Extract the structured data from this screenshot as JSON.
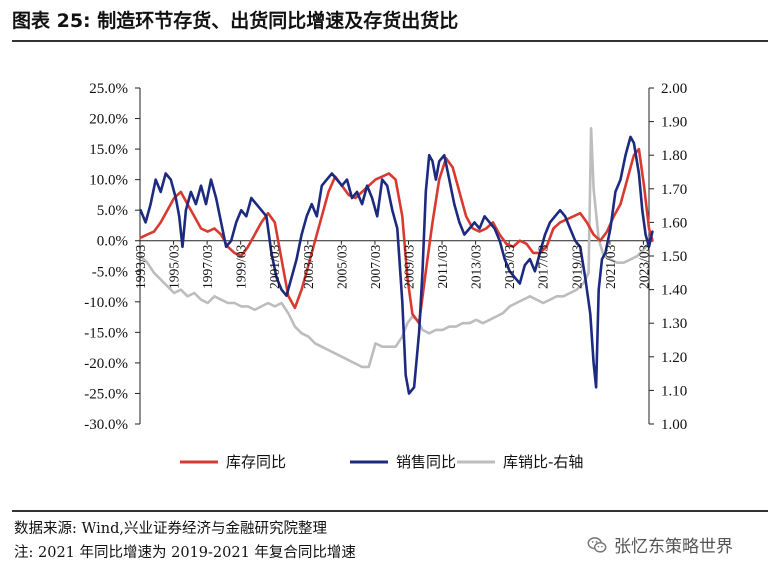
{
  "title": "图表 25:  制造环节存货、出货同比增速及存货出货比",
  "source": "数据来源:  Wind,兴业证券经济与金融研究院整理",
  "note": "注:  2021 年同比增速为 2019-2021 年复合同比增速",
  "watermark": "张忆东策略世界",
  "watermark_icon": "wechat-icon",
  "chart_data": {
    "type": "line",
    "title": "",
    "xlabel": "",
    "ylabel": "",
    "ylabel_right": "",
    "x_range": [
      "1993/03",
      "2023/07"
    ],
    "ylim": [
      -30,
      25
    ],
    "ylim_right": [
      1.0,
      2.0
    ],
    "yticks": [
      "25.0%",
      "20.0%",
      "15.0%",
      "10.0%",
      "5.0%",
      "0.0%",
      "-5.0%",
      "-10.0%",
      "-15.0%",
      "-20.0%",
      "-25.0%",
      "-30.0%"
    ],
    "yticks_right": [
      "2.00",
      "1.90",
      "1.80",
      "1.70",
      "1.60",
      "1.50",
      "1.40",
      "1.30",
      "1.20",
      "1.10",
      "1.00"
    ],
    "xticks": [
      "1993/03",
      "1995/03",
      "1997/03",
      "1999/03",
      "2001/03",
      "2003/03",
      "2005/03",
      "2007/03",
      "2009/03",
      "2011/03",
      "2013/03",
      "2015/03",
      "2017/03",
      "2019/03",
      "2021/03",
      "2023/03"
    ],
    "legend_position": "bottom",
    "grid": false,
    "series": [
      {
        "name": "库存同比",
        "axis": "left",
        "color": "#d93a30",
        "points": [
          [
            1993.2,
            0.5
          ],
          [
            1993.6,
            1
          ],
          [
            1994.0,
            1.5
          ],
          [
            1994.4,
            3
          ],
          [
            1994.8,
            5
          ],
          [
            1995.2,
            7
          ],
          [
            1995.6,
            8
          ],
          [
            1996.0,
            6
          ],
          [
            1996.4,
            4
          ],
          [
            1996.8,
            2
          ],
          [
            1997.2,
            1.5
          ],
          [
            1997.6,
            2
          ],
          [
            1998.0,
            1
          ],
          [
            1998.4,
            -1
          ],
          [
            1998.8,
            -2
          ],
          [
            1999.2,
            -2.5
          ],
          [
            1999.6,
            -1
          ],
          [
            2000.0,
            1
          ],
          [
            2000.4,
            3
          ],
          [
            2000.8,
            4.5
          ],
          [
            2001.2,
            3
          ],
          [
            2001.6,
            -3
          ],
          [
            2002.0,
            -9
          ],
          [
            2002.4,
            -11
          ],
          [
            2002.8,
            -8
          ],
          [
            2003.2,
            -4
          ],
          [
            2003.6,
            0
          ],
          [
            2004.0,
            4
          ],
          [
            2004.4,
            8
          ],
          [
            2004.8,
            10.5
          ],
          [
            2005.2,
            9
          ],
          [
            2005.6,
            7.5
          ],
          [
            2006.0,
            7
          ],
          [
            2006.4,
            8
          ],
          [
            2006.8,
            9
          ],
          [
            2007.2,
            10
          ],
          [
            2007.6,
            10.5
          ],
          [
            2008.0,
            11
          ],
          [
            2008.4,
            10
          ],
          [
            2008.8,
            4
          ],
          [
            2009.1,
            -6
          ],
          [
            2009.4,
            -12
          ],
          [
            2009.8,
            -13.5
          ],
          [
            2010.2,
            -5
          ],
          [
            2010.6,
            3
          ],
          [
            2011.0,
            10
          ],
          [
            2011.4,
            13.5
          ],
          [
            2011.8,
            12
          ],
          [
            2012.2,
            8
          ],
          [
            2012.6,
            4
          ],
          [
            2013.0,
            2
          ],
          [
            2013.4,
            1.5
          ],
          [
            2013.8,
            2
          ],
          [
            2014.2,
            3
          ],
          [
            2014.6,
            1
          ],
          [
            2015.0,
            -0.5
          ],
          [
            2015.4,
            -1
          ],
          [
            2015.8,
            0
          ],
          [
            2016.2,
            -0.5
          ],
          [
            2016.6,
            -2
          ],
          [
            2017.0,
            -2
          ],
          [
            2017.4,
            -1
          ],
          [
            2017.8,
            2
          ],
          [
            2018.2,
            3
          ],
          [
            2018.6,
            3.5
          ],
          [
            2019.0,
            4
          ],
          [
            2019.4,
            4.5
          ],
          [
            2019.8,
            3
          ],
          [
            2020.2,
            1
          ],
          [
            2020.6,
            0
          ],
          [
            2021.0,
            1.5
          ],
          [
            2021.4,
            4
          ],
          [
            2021.8,
            6
          ],
          [
            2022.2,
            10
          ],
          [
            2022.6,
            14
          ],
          [
            2022.9,
            15
          ],
          [
            2023.2,
            9
          ],
          [
            2023.5,
            2
          ],
          [
            2023.7,
            0
          ]
        ]
      },
      {
        "name": "销售同比",
        "axis": "left",
        "color": "#1c2a80",
        "points": [
          [
            1993.2,
            5
          ],
          [
            1993.5,
            3
          ],
          [
            1993.8,
            6
          ],
          [
            1994.1,
            10
          ],
          [
            1994.4,
            8
          ],
          [
            1994.7,
            11
          ],
          [
            1995.0,
            10
          ],
          [
            1995.3,
            7
          ],
          [
            1995.5,
            4
          ],
          [
            1995.7,
            -1
          ],
          [
            1995.9,
            5
          ],
          [
            1996.2,
            8
          ],
          [
            1996.5,
            6
          ],
          [
            1996.8,
            9
          ],
          [
            1997.1,
            6
          ],
          [
            1997.4,
            10
          ],
          [
            1997.7,
            7
          ],
          [
            1998.0,
            3
          ],
          [
            1998.3,
            -1
          ],
          [
            1998.6,
            0
          ],
          [
            1998.9,
            3
          ],
          [
            1999.2,
            5
          ],
          [
            1999.5,
            4
          ],
          [
            1999.8,
            7
          ],
          [
            2000.1,
            6
          ],
          [
            2000.4,
            5
          ],
          [
            2000.7,
            4
          ],
          [
            2001.0,
            -2
          ],
          [
            2001.3,
            -6
          ],
          [
            2001.6,
            -8
          ],
          [
            2001.9,
            -9
          ],
          [
            2002.2,
            -6
          ],
          [
            2002.5,
            -3
          ],
          [
            2002.8,
            1
          ],
          [
            2003.1,
            4
          ],
          [
            2003.4,
            6
          ],
          [
            2003.7,
            4
          ],
          [
            2004.0,
            9
          ],
          [
            2004.3,
            10
          ],
          [
            2004.6,
            11
          ],
          [
            2004.9,
            10
          ],
          [
            2005.2,
            9
          ],
          [
            2005.5,
            10
          ],
          [
            2005.8,
            7
          ],
          [
            2006.1,
            8
          ],
          [
            2006.4,
            6
          ],
          [
            2006.7,
            9
          ],
          [
            2007.0,
            7
          ],
          [
            2007.3,
            4
          ],
          [
            2007.6,
            10
          ],
          [
            2007.9,
            9
          ],
          [
            2008.2,
            5
          ],
          [
            2008.5,
            2
          ],
          [
            2008.8,
            -10
          ],
          [
            2009.0,
            -22
          ],
          [
            2009.2,
            -25
          ],
          [
            2009.5,
            -24
          ],
          [
            2009.8,
            -15
          ],
          [
            2010.0,
            -5
          ],
          [
            2010.2,
            8
          ],
          [
            2010.4,
            14
          ],
          [
            2010.6,
            13
          ],
          [
            2010.8,
            10
          ],
          [
            2011.0,
            13
          ],
          [
            2011.3,
            14
          ],
          [
            2011.6,
            10
          ],
          [
            2011.9,
            6
          ],
          [
            2012.2,
            3
          ],
          [
            2012.5,
            1
          ],
          [
            2012.8,
            2
          ],
          [
            2013.1,
            3
          ],
          [
            2013.4,
            2
          ],
          [
            2013.7,
            4
          ],
          [
            2014.0,
            3
          ],
          [
            2014.3,
            2
          ],
          [
            2014.6,
            0
          ],
          [
            2014.9,
            -3
          ],
          [
            2015.2,
            -5
          ],
          [
            2015.5,
            -6
          ],
          [
            2015.8,
            -7
          ],
          [
            2016.1,
            -4
          ],
          [
            2016.4,
            -3
          ],
          [
            2016.7,
            -5
          ],
          [
            2017.0,
            -2
          ],
          [
            2017.3,
            1
          ],
          [
            2017.6,
            3
          ],
          [
            2017.9,
            4
          ],
          [
            2018.2,
            5
          ],
          [
            2018.5,
            4
          ],
          [
            2018.8,
            2
          ],
          [
            2019.1,
            0
          ],
          [
            2019.4,
            -1
          ],
          [
            2019.7,
            -6
          ],
          [
            2020.0,
            -12
          ],
          [
            2020.2,
            -20
          ],
          [
            2020.35,
            -24
          ],
          [
            2020.5,
            -8
          ],
          [
            2020.7,
            -3
          ],
          [
            2020.9,
            -2
          ],
          [
            2021.2,
            2
          ],
          [
            2021.5,
            8
          ],
          [
            2021.8,
            10
          ],
          [
            2022.1,
            14
          ],
          [
            2022.4,
            17
          ],
          [
            2022.6,
            16
          ],
          [
            2022.9,
            11
          ],
          [
            2023.1,
            5
          ],
          [
            2023.3,
            1
          ],
          [
            2023.5,
            -1
          ],
          [
            2023.7,
            1.5
          ]
        ]
      },
      {
        "name": "库销比-右轴",
        "axis": "right",
        "color": "#bdbdbd",
        "points": [
          [
            1993.2,
            1.5
          ],
          [
            1993.6,
            1.48
          ],
          [
            1994.0,
            1.45
          ],
          [
            1994.4,
            1.43
          ],
          [
            1994.8,
            1.41
          ],
          [
            1995.2,
            1.39
          ],
          [
            1995.6,
            1.4
          ],
          [
            1996.0,
            1.38
          ],
          [
            1996.4,
            1.39
          ],
          [
            1996.8,
            1.37
          ],
          [
            1997.2,
            1.36
          ],
          [
            1997.6,
            1.38
          ],
          [
            1998.0,
            1.37
          ],
          [
            1998.4,
            1.36
          ],
          [
            1998.8,
            1.36
          ],
          [
            1999.2,
            1.35
          ],
          [
            1999.6,
            1.35
          ],
          [
            2000.0,
            1.34
          ],
          [
            2000.4,
            1.35
          ],
          [
            2000.8,
            1.36
          ],
          [
            2001.2,
            1.35
          ],
          [
            2001.6,
            1.36
          ],
          [
            2002.0,
            1.33
          ],
          [
            2002.4,
            1.29
          ],
          [
            2002.8,
            1.27
          ],
          [
            2003.2,
            1.26
          ],
          [
            2003.6,
            1.24
          ],
          [
            2004.0,
            1.23
          ],
          [
            2004.4,
            1.22
          ],
          [
            2004.8,
            1.21
          ],
          [
            2005.2,
            1.2
          ],
          [
            2005.6,
            1.19
          ],
          [
            2006.0,
            1.18
          ],
          [
            2006.4,
            1.17
          ],
          [
            2006.8,
            1.17
          ],
          [
            2007.2,
            1.24
          ],
          [
            2007.6,
            1.23
          ],
          [
            2008.0,
            1.23
          ],
          [
            2008.4,
            1.23
          ],
          [
            2008.8,
            1.26
          ],
          [
            2009.1,
            1.3
          ],
          [
            2009.4,
            1.32
          ],
          [
            2009.7,
            1.31
          ],
          [
            2010.0,
            1.28
          ],
          [
            2010.4,
            1.27
          ],
          [
            2010.8,
            1.28
          ],
          [
            2011.2,
            1.28
          ],
          [
            2011.6,
            1.29
          ],
          [
            2012.0,
            1.29
          ],
          [
            2012.4,
            1.3
          ],
          [
            2012.8,
            1.3
          ],
          [
            2013.2,
            1.31
          ],
          [
            2013.6,
            1.3
          ],
          [
            2014.0,
            1.31
          ],
          [
            2014.4,
            1.32
          ],
          [
            2014.8,
            1.33
          ],
          [
            2015.2,
            1.35
          ],
          [
            2015.6,
            1.36
          ],
          [
            2016.0,
            1.37
          ],
          [
            2016.4,
            1.38
          ],
          [
            2016.8,
            1.37
          ],
          [
            2017.2,
            1.36
          ],
          [
            2017.6,
            1.37
          ],
          [
            2018.0,
            1.38
          ],
          [
            2018.4,
            1.38
          ],
          [
            2018.8,
            1.39
          ],
          [
            2019.2,
            1.4
          ],
          [
            2019.6,
            1.42
          ],
          [
            2019.9,
            1.45
          ],
          [
            2020.05,
            1.88
          ],
          [
            2020.2,
            1.7
          ],
          [
            2020.5,
            1.55
          ],
          [
            2020.8,
            1.5
          ],
          [
            2021.2,
            1.49
          ],
          [
            2021.6,
            1.48
          ],
          [
            2022.0,
            1.48
          ],
          [
            2022.4,
            1.49
          ],
          [
            2022.8,
            1.5
          ],
          [
            2023.2,
            1.52
          ],
          [
            2023.5,
            1.54
          ],
          [
            2023.7,
            1.55
          ]
        ]
      }
    ]
  }
}
